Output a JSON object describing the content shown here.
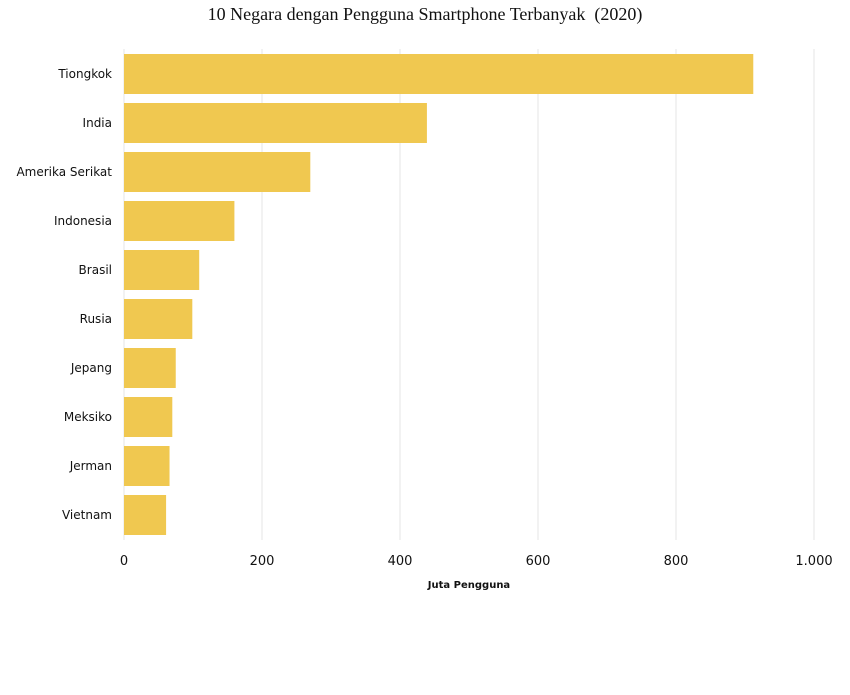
{
  "chart_data": {
    "type": "bar",
    "orientation": "horizontal",
    "title": "10 Negara dengan Pengguna Smartphone Terbanyak  (2020)",
    "xlabel": "Juta Pengguna",
    "ylabel": "",
    "categories": [
      "Tiongkok",
      "India",
      "Amerika Serikat",
      "Indonesia",
      "Brasil",
      "Rusia",
      "Jepang",
      "Meksiko",
      "Jerman",
      "Vietnam"
    ],
    "values": [
      912,
      439,
      270,
      160,
      109,
      99,
      75,
      70,
      66,
      61
    ],
    "xlim": [
      0,
      1000
    ],
    "x_ticks": [
      0,
      200,
      400,
      600,
      800,
      1000
    ],
    "x_tick_labels": [
      "0",
      "200",
      "400",
      "600",
      "800",
      "1.000"
    ],
    "grid": true,
    "bar_color": "#f0c850",
    "grid_color": "#e6e6e6"
  }
}
